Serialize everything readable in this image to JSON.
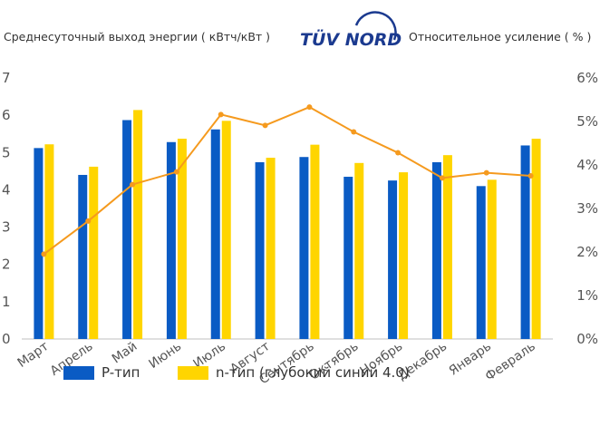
{
  "header": {
    "left_axis_title": "Среднесуточный выход энергии ( кВтч/кВт )",
    "right_axis_title": "Относительное усиление ( % )",
    "logo_text": "TÜV NORD"
  },
  "colors": {
    "p_type": "#0a5bc4",
    "n_type": "#ffd500",
    "gain_line": "#f59a1e",
    "axis": "#bfbfbf"
  },
  "chart_data": {
    "type": "bar",
    "categories": [
      "Март",
      "Апрель",
      "Май",
      "Июнь",
      "Июль",
      "Август",
      "Сентябрь",
      "Октябрь",
      "Ноябрь",
      "Декабрь",
      "Январь",
      "Февраль"
    ],
    "series": [
      {
        "name": "P-тип",
        "type": "bar",
        "axis": "left",
        "values": [
          5.12,
          4.4,
          5.87,
          5.28,
          5.62,
          4.74,
          4.88,
          4.35,
          4.25,
          4.74,
          4.1,
          5.19
        ]
      },
      {
        "name": "n-тип (глубокий синий 4.0)",
        "type": "bar",
        "axis": "left",
        "values": [
          5.22,
          4.62,
          6.14,
          5.37,
          5.85,
          4.86,
          5.21,
          4.72,
          4.47,
          4.93,
          4.27,
          5.37
        ]
      },
      {
        "type": "line",
        "axis": "right",
        "values": [
          1.95,
          2.71,
          3.55,
          3.84,
          5.16,
          4.91,
          5.33,
          4.76,
          4.28,
          3.7,
          3.82,
          3.75
        ]
      }
    ],
    "left_ticks": [
      "0",
      "1",
      "2",
      "3",
      "4",
      "5",
      "6",
      "7"
    ],
    "right_ticks": [
      "0%",
      "1%",
      "2%",
      "3%",
      "4%",
      "5%",
      "6%"
    ],
    "ylim_left": [
      0,
      7
    ],
    "ylim_right": [
      0,
      6
    ],
    "grid": false,
    "legend_position": "bottom"
  },
  "legend": {
    "items": [
      "P-тип",
      "n-тип (глубокий синий 4.0)"
    ]
  }
}
